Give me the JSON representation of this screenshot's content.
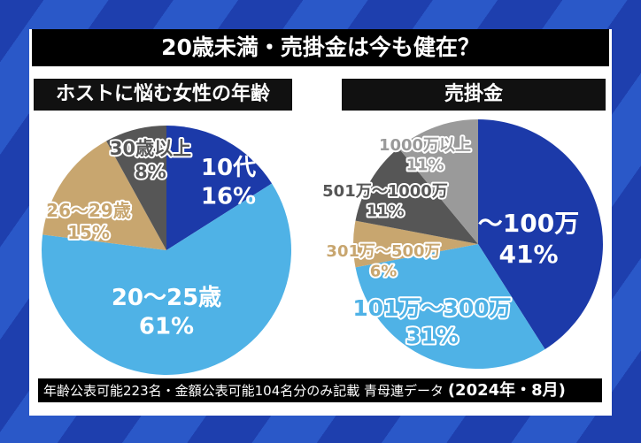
{
  "title": "20歳未満・売掛金は今も健在？",
  "note": "年齢公表可能223名・金額公表可能104名分のみ記載 青母連データ",
  "note_date": "(2024年・8月)",
  "colors": {
    "dark_blue": "#1c3aa9",
    "light_blue": "#4fb2e6",
    "tan": "#c8a66f",
    "dark_gray": "#565656",
    "light_gray": "#9a9a9a"
  },
  "chart_data": [
    {
      "type": "pie",
      "title": "ホストに悩む女性の年齢",
      "unit": "%",
      "slices": [
        {
          "label": "10代",
          "value": 16,
          "color": "#1c3aa9"
        },
        {
          "label": "20～25歳",
          "value": 61,
          "color": "#4fb2e6"
        },
        {
          "label": "26～29歳",
          "value": 15,
          "color": "#c8a66f"
        },
        {
          "label": "30歳以上",
          "value": 8,
          "color": "#565656"
        }
      ]
    },
    {
      "type": "pie",
      "title": "売掛金",
      "unit": "%",
      "slices": [
        {
          "label": "～100万",
          "value": 41,
          "color": "#1c3aa9"
        },
        {
          "label": "101万～300万",
          "value": 31,
          "color": "#4fb2e6"
        },
        {
          "label": "301万～500万",
          "value": 6,
          "color": "#c8a66f"
        },
        {
          "label": "501万～1000万",
          "value": 11,
          "color": "#565656"
        },
        {
          "label": "1000万以上",
          "value": 11,
          "color": "#9a9a9a"
        }
      ]
    }
  ]
}
